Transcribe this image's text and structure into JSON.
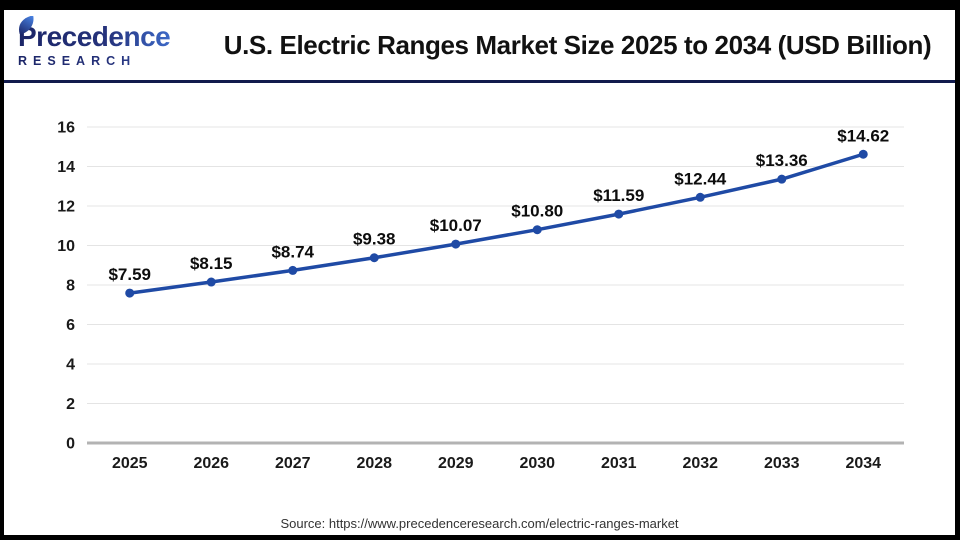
{
  "brand": {
    "wordmark": "Precedence",
    "subtext": "RESEARCH",
    "color_dark": "#1b2567",
    "color_light": "#4a86e8"
  },
  "header": {
    "title": "U.S. Electric Ranges Market Size 2025 to 2034 (USD Billion)",
    "divider_color": "#121b4d"
  },
  "chart_data": {
    "type": "line",
    "title": "U.S. Electric Ranges Market Size 2025 to 2034 (USD Billion)",
    "categories": [
      "2025",
      "2026",
      "2027",
      "2028",
      "2029",
      "2030",
      "2031",
      "2032",
      "2033",
      "2034"
    ],
    "values": [
      7.59,
      8.15,
      8.74,
      9.38,
      10.07,
      10.8,
      11.59,
      12.44,
      13.36,
      14.62
    ],
    "point_labels": [
      "$7.59",
      "$8.15",
      "$8.74",
      "$9.38",
      "$10.07",
      "$10.80",
      "$11.59",
      "$12.44",
      "$13.36",
      "$14.62"
    ],
    "yticks": [
      0,
      2,
      4,
      6,
      8,
      10,
      12,
      14,
      16
    ],
    "ylim": [
      0,
      16
    ],
    "xlabel": "",
    "ylabel": "",
    "grid": true,
    "legend": "none",
    "line_color": "#1f4aa5",
    "point_color": "#1f4aa5",
    "gridline_color": "#e4e4e4",
    "baseline_color": "#b3b3b3"
  },
  "footer": {
    "source": "Source: https://www.precedenceresearch.com/electric-ranges-market"
  }
}
